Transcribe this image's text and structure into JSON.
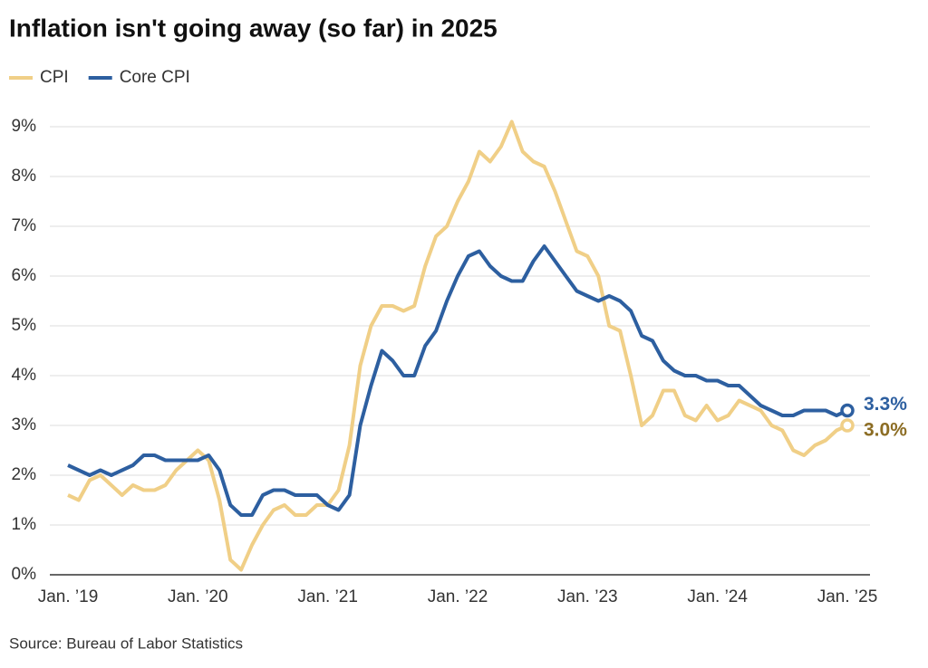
{
  "chart_data": {
    "type": "line",
    "title": "Inflation isn't going away (so far) in 2025",
    "source": "Source: Bureau of Labor Statistics",
    "categories": [
      "Jan. ’19",
      null,
      null,
      null,
      null,
      null,
      null,
      null,
      null,
      null,
      null,
      null,
      "Jan. ’20",
      null,
      null,
      null,
      null,
      null,
      null,
      null,
      null,
      null,
      null,
      null,
      "Jan. ’21",
      null,
      null,
      null,
      null,
      null,
      null,
      null,
      null,
      null,
      null,
      null,
      "Jan. ’22",
      null,
      null,
      null,
      null,
      null,
      null,
      null,
      null,
      null,
      null,
      null,
      "Jan. ’23",
      null,
      null,
      null,
      null,
      null,
      null,
      null,
      null,
      null,
      null,
      null,
      "Jan. ’24",
      null,
      null,
      null,
      null,
      null,
      null,
      null,
      null,
      null,
      null,
      null,
      "Jan. ’25"
    ],
    "series": [
      {
        "name": "CPI",
        "color": "#f0cf87",
        "label_color": "#8c6d24",
        "values": [
          1.6,
          1.5,
          1.9,
          2.0,
          1.8,
          1.6,
          1.8,
          1.7,
          1.7,
          1.8,
          2.1,
          2.3,
          2.5,
          2.3,
          1.5,
          0.3,
          0.1,
          0.6,
          1.0,
          1.3,
          1.4,
          1.2,
          1.2,
          1.4,
          1.4,
          1.7,
          2.6,
          4.2,
          5.0,
          5.4,
          5.4,
          5.3,
          5.4,
          6.2,
          6.8,
          7.0,
          7.5,
          7.9,
          8.5,
          8.3,
          8.6,
          9.1,
          8.5,
          8.3,
          8.2,
          7.7,
          7.1,
          6.5,
          6.4,
          6.0,
          5.0,
          4.9,
          4.0,
          3.0,
          3.2,
          3.7,
          3.7,
          3.2,
          3.1,
          3.4,
          3.1,
          3.2,
          3.5,
          3.4,
          3.3,
          3.0,
          2.9,
          2.5,
          2.4,
          2.6,
          2.7,
          2.9,
          3.0
        ],
        "value_labels": [
          null,
          null,
          null,
          null,
          null,
          null,
          null,
          null,
          null,
          null,
          null,
          null,
          null,
          null,
          null,
          null,
          null,
          null,
          null,
          null,
          null,
          null,
          null,
          null,
          null,
          null,
          null,
          null,
          null,
          null,
          null,
          null,
          null,
          null,
          null,
          null,
          null,
          null,
          null,
          null,
          null,
          null,
          null,
          null,
          null,
          null,
          null,
          null,
          null,
          null,
          null,
          null,
          null,
          null,
          null,
          null,
          null,
          null,
          null,
          null,
          null,
          null,
          null,
          null,
          null,
          null,
          null,
          null,
          null,
          null,
          null,
          null,
          "3.0%"
        ]
      },
      {
        "name": "Core CPI",
        "color": "#2d5fa0",
        "label_color": "#2d5fa0",
        "values": [
          2.2,
          2.1,
          2.0,
          2.1,
          2.0,
          2.1,
          2.2,
          2.4,
          2.4,
          2.3,
          2.3,
          2.3,
          2.3,
          2.4,
          2.1,
          1.4,
          1.2,
          1.2,
          1.6,
          1.7,
          1.7,
          1.6,
          1.6,
          1.6,
          1.4,
          1.3,
          1.6,
          3.0,
          3.8,
          4.5,
          4.3,
          4.0,
          4.0,
          4.6,
          4.9,
          5.5,
          6.0,
          6.4,
          6.5,
          6.2,
          6.0,
          5.9,
          5.9,
          6.3,
          6.6,
          6.3,
          6.0,
          5.7,
          5.6,
          5.5,
          5.6,
          5.5,
          5.3,
          4.8,
          4.7,
          4.3,
          4.1,
          4.0,
          4.0,
          3.9,
          3.9,
          3.8,
          3.8,
          3.6,
          3.4,
          3.3,
          3.2,
          3.2,
          3.3,
          3.3,
          3.3,
          3.2,
          3.3
        ],
        "value_labels": [
          null,
          null,
          null,
          null,
          null,
          null,
          null,
          null,
          null,
          null,
          null,
          null,
          null,
          null,
          null,
          null,
          null,
          null,
          null,
          null,
          null,
          null,
          null,
          null,
          null,
          null,
          null,
          null,
          null,
          null,
          null,
          null,
          null,
          null,
          null,
          null,
          null,
          null,
          null,
          null,
          null,
          null,
          null,
          null,
          null,
          null,
          null,
          null,
          null,
          null,
          null,
          null,
          null,
          null,
          null,
          null,
          null,
          null,
          null,
          null,
          null,
          null,
          null,
          null,
          null,
          null,
          null,
          null,
          null,
          null,
          null,
          null,
          "3.3%"
        ]
      }
    ],
    "ylim": [
      0,
      9
    ],
    "yticks": [
      {
        "value": 0,
        "label": "0%"
      },
      {
        "value": 1,
        "label": "1%"
      },
      {
        "value": 2,
        "label": "2%"
      },
      {
        "value": 3,
        "label": "3%"
      },
      {
        "value": 4,
        "label": "4%"
      },
      {
        "value": 5,
        "label": "5%"
      },
      {
        "value": 6,
        "label": "6%"
      },
      {
        "value": 7,
        "label": "7%"
      },
      {
        "value": 8,
        "label": "8%"
      },
      {
        "value": 9,
        "label": "9%"
      }
    ],
    "grid": true
  }
}
